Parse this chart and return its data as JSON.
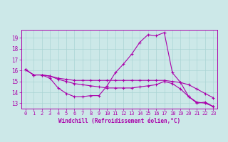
{
  "xlabel": "Windchill (Refroidissement éolien,°C)",
  "bg_color": "#cce8e8",
  "grid_color": "#aad4d4",
  "line_color": "#aa00aa",
  "spine_color": "#aa00aa",
  "xlim": [
    -0.5,
    23.5
  ],
  "ylim": [
    12.5,
    19.75
  ],
  "xticks": [
    0,
    1,
    2,
    3,
    4,
    5,
    6,
    7,
    8,
    9,
    10,
    11,
    12,
    13,
    14,
    15,
    16,
    17,
    18,
    19,
    20,
    21,
    22,
    23
  ],
  "yticks": [
    13,
    14,
    15,
    16,
    17,
    18,
    19
  ],
  "line1_x": [
    0,
    1,
    2,
    3,
    4,
    5,
    6,
    7,
    8,
    9,
    10,
    11,
    12,
    13,
    14,
    15,
    16,
    17,
    18,
    19,
    20,
    21,
    22,
    23
  ],
  "line1_y": [
    16.1,
    15.6,
    15.6,
    15.3,
    14.4,
    13.9,
    13.6,
    13.6,
    13.7,
    13.7,
    14.6,
    15.8,
    16.6,
    17.5,
    18.6,
    19.3,
    19.2,
    19.5,
    15.8,
    14.9,
    13.6,
    13.0,
    13.1,
    12.7
  ],
  "line2_x": [
    0,
    1,
    2,
    3,
    4,
    5,
    6,
    7,
    8,
    9,
    10,
    11,
    12,
    13,
    14,
    15,
    16,
    17,
    18,
    19,
    20,
    21,
    22,
    23
  ],
  "line2_y": [
    16.1,
    15.6,
    15.6,
    15.5,
    15.3,
    15.2,
    15.1,
    15.1,
    15.1,
    15.1,
    15.1,
    15.1,
    15.1,
    15.1,
    15.1,
    15.1,
    15.1,
    15.1,
    15.0,
    14.9,
    14.7,
    14.3,
    13.9,
    13.5
  ],
  "line3_x": [
    0,
    1,
    2,
    3,
    4,
    5,
    6,
    7,
    8,
    9,
    10,
    11,
    12,
    13,
    14,
    15,
    16,
    17,
    18,
    19,
    20,
    21,
    22,
    23
  ],
  "line3_y": [
    16.1,
    15.6,
    15.6,
    15.5,
    15.2,
    15.0,
    14.8,
    14.7,
    14.6,
    14.5,
    14.4,
    14.4,
    14.4,
    14.4,
    14.5,
    14.6,
    14.7,
    15.0,
    14.8,
    14.3,
    13.6,
    13.1,
    13.0,
    12.7
  ],
  "tick_fontsize": 5.0,
  "xlabel_fontsize": 5.5,
  "lw": 0.8,
  "ms": 2.5
}
